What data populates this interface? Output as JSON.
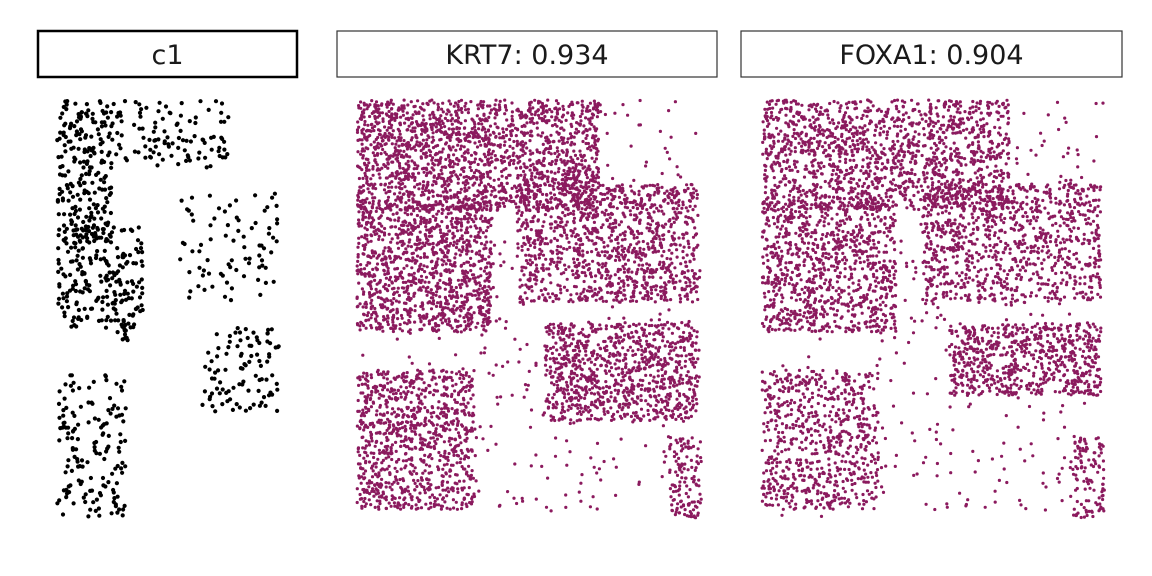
{
  "chart_data": [
    {
      "type": "scatter",
      "title": "c1",
      "color": "#000000",
      "xlim": [
        0,
        1
      ],
      "ylim": [
        0,
        1
      ],
      "grid": false,
      "clusters": [
        {
          "x": [
            0.05,
            0.27
          ],
          "y": [
            0.66,
            1.0
          ],
          "count": 220
        },
        {
          "x": [
            0.27,
            0.75
          ],
          "y": [
            0.84,
            1.0
          ],
          "count": 110
        },
        {
          "x": [
            0.05,
            0.4
          ],
          "y": [
            0.46,
            0.7
          ],
          "count": 210
        },
        {
          "x": [
            0.28,
            0.36
          ],
          "y": [
            0.43,
            0.48
          ],
          "count": 15
        },
        {
          "x": [
            0.55,
            0.95
          ],
          "y": [
            0.52,
            0.78
          ],
          "count": 80
        },
        {
          "x": [
            0.64,
            0.96
          ],
          "y": [
            0.26,
            0.46
          ],
          "count": 95
        },
        {
          "x": [
            0.05,
            0.33
          ],
          "y": [
            0.01,
            0.35
          ],
          "count": 150
        }
      ]
    },
    {
      "type": "scatter",
      "title": "KRT7: 0.934",
      "color": "#8b1a5e",
      "xlim": [
        0,
        1
      ],
      "ylim": [
        0,
        1
      ],
      "grid": false,
      "clusters": [
        {
          "x": [
            0.02,
            0.7
          ],
          "y": [
            0.74,
            1.0
          ],
          "count": 1700
        },
        {
          "x": [
            0.02,
            0.4
          ],
          "y": [
            0.45,
            0.76
          ],
          "count": 1100
        },
        {
          "x": [
            0.47,
            0.98
          ],
          "y": [
            0.52,
            0.8
          ],
          "count": 1100
        },
        {
          "x": [
            0.55,
            0.98
          ],
          "y": [
            0.24,
            0.47
          ],
          "count": 900
        },
        {
          "x": [
            0.02,
            0.35
          ],
          "y": [
            0.03,
            0.36
          ],
          "count": 900
        },
        {
          "x": [
            0.9,
            0.99
          ],
          "y": [
            0.01,
            0.2
          ],
          "count": 120
        },
        {
          "x": [
            0.02,
            0.99
          ],
          "y": [
            0.01,
            1.0
          ],
          "count": 500
        }
      ]
    },
    {
      "type": "scatter",
      "title": "FOXA1: 0.904",
      "color": "#8b1a5e",
      "xlim": [
        0,
        1
      ],
      "ylim": [
        0,
        1
      ],
      "grid": false,
      "clusters": [
        {
          "x": [
            0.02,
            0.72
          ],
          "y": [
            0.74,
            1.0
          ],
          "count": 1400
        },
        {
          "x": [
            0.02,
            0.4
          ],
          "y": [
            0.45,
            0.76
          ],
          "count": 900
        },
        {
          "x": [
            0.47,
            0.98
          ],
          "y": [
            0.52,
            0.8
          ],
          "count": 900
        },
        {
          "x": [
            0.55,
            0.98
          ],
          "y": [
            0.3,
            0.47
          ],
          "count": 650
        },
        {
          "x": [
            0.02,
            0.35
          ],
          "y": [
            0.03,
            0.36
          ],
          "count": 650
        },
        {
          "x": [
            0.9,
            0.99
          ],
          "y": [
            0.01,
            0.2
          ],
          "count": 100
        },
        {
          "x": [
            0.02,
            0.99
          ],
          "y": [
            0.01,
            1.0
          ],
          "count": 450
        }
      ]
    }
  ]
}
